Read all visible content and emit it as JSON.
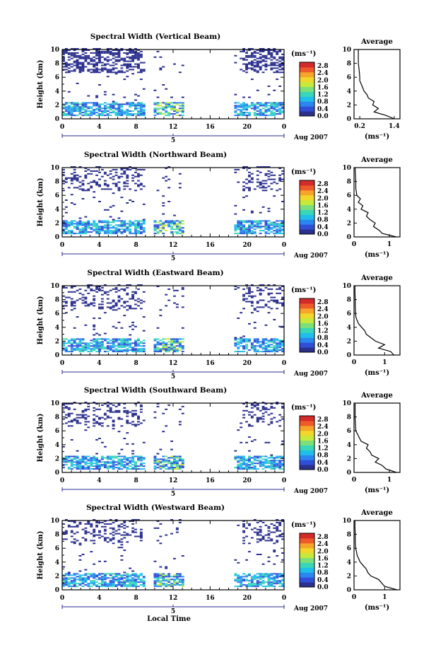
{
  "figure": {
    "date_label": "Aug 2007",
    "date_day": "5",
    "xaxis_label": "Local Time",
    "units_label": "(ms⁻¹)",
    "colormap": [
      "#2b2f8e",
      "#2f4fd6",
      "#2a86f0",
      "#1fbfea",
      "#3ad6b8",
      "#7be07a",
      "#c7e83c",
      "#f1d72a",
      "#f6a52a",
      "#ee5a2a",
      "#d42a2a"
    ]
  },
  "chart_data": [
    {
      "type": "heatmap",
      "title": "Spectral Width (Vertical Beam)",
      "xlabel": "",
      "ylabel": "Height (km)",
      "xlim": [
        0,
        24
      ],
      "ylim": [
        0,
        10
      ],
      "xticks": [
        "0",
        "4",
        "8",
        "12",
        "16",
        "20",
        "0"
      ],
      "yticks": [
        "0",
        "2",
        "4",
        "6",
        "8",
        "10"
      ],
      "colorbar": {
        "label": "(ms⁻¹)",
        "ticks": [
          "0.0",
          "0.4",
          "0.8",
          "1.2",
          "1.6",
          "2.0",
          "2.4",
          "2.8"
        ],
        "range": [
          0,
          3
        ]
      },
      "average_profile": {
        "title": "Average",
        "xlabel": "(ms⁻¹)",
        "xticks": [
          "0.2",
          "1.4"
        ],
        "xlim": [
          0,
          1.6
        ],
        "height": [
          0,
          0.5,
          1,
          1.5,
          2,
          2.5,
          3,
          3.5,
          4,
          4.5,
          5,
          5.5,
          6,
          7,
          8,
          9,
          10
        ],
        "value": [
          1.4,
          1.1,
          0.7,
          0.85,
          0.65,
          0.7,
          0.5,
          0.45,
          0.35,
          0.3,
          0.25,
          0.2,
          0.2,
          0.18,
          0.15,
          0.15,
          0.15
        ]
      }
    },
    {
      "type": "heatmap",
      "title": "Spectral Width (Northward Beam)",
      "xlabel": "",
      "ylabel": "Height (km)",
      "xlim": [
        0,
        24
      ],
      "ylim": [
        0,
        10
      ],
      "xticks": [
        "0",
        "4",
        "8",
        "12",
        "16",
        "20",
        "0"
      ],
      "yticks": [
        "0",
        "2",
        "4",
        "6",
        "8",
        "10"
      ],
      "colorbar": {
        "label": "(ms⁻¹)",
        "ticks": [
          "0.0",
          "0.4",
          "0.8",
          "1.2",
          "1.6",
          "2.0",
          "2.4",
          "2.8"
        ],
        "range": [
          0,
          3
        ]
      },
      "average_profile": {
        "title": "Average",
        "xlabel": "(ms⁻¹)",
        "xticks": [
          "0",
          "1"
        ],
        "xlim": [
          0,
          1.3
        ],
        "height": [
          0,
          0.5,
          1,
          1.5,
          2,
          2.5,
          3,
          3.5,
          4,
          4.5,
          5,
          5.5,
          6,
          7,
          8,
          9,
          10
        ],
        "value": [
          1.2,
          0.8,
          0.7,
          0.55,
          0.6,
          0.45,
          0.35,
          0.4,
          0.2,
          0.25,
          0.12,
          0.18,
          0.08,
          0.05,
          0.05,
          0.04,
          0.03
        ]
      }
    },
    {
      "type": "heatmap",
      "title": "Spectral Width (Eastward Beam)",
      "xlabel": "",
      "ylabel": "Height (km)",
      "xlim": [
        0,
        24
      ],
      "ylim": [
        0,
        10
      ],
      "xticks": [
        "0",
        "4",
        "8",
        "12",
        "16",
        "20",
        "0"
      ],
      "yticks": [
        "0",
        "2",
        "4",
        "6",
        "8",
        "10"
      ],
      "colorbar": {
        "label": "(ms⁻¹)",
        "ticks": [
          "0.0",
          "0.4",
          "0.8",
          "1.2",
          "1.6",
          "2.0",
          "2.4",
          "2.8"
        ],
        "range": [
          0,
          3
        ]
      },
      "average_profile": {
        "title": "Average",
        "xlabel": "(ms⁻¹)",
        "xticks": [
          "0",
          "1"
        ],
        "xlim": [
          0,
          1.5
        ],
        "height": [
          0,
          0.5,
          1,
          1.5,
          2,
          2.5,
          3,
          3.5,
          4,
          4.5,
          5,
          5.5,
          6,
          7,
          8,
          9,
          10
        ],
        "value": [
          1.3,
          1.2,
          0.8,
          1.0,
          0.7,
          0.55,
          0.4,
          0.35,
          0.25,
          0.15,
          0.1,
          0.06,
          0.05,
          0.04,
          0.04,
          0.03,
          0.03
        ]
      }
    },
    {
      "type": "heatmap",
      "title": "Spectral Width (Southward Beam)",
      "xlabel": "",
      "ylabel": "Height (km)",
      "xlim": [
        0,
        24
      ],
      "ylim": [
        0,
        10
      ],
      "xticks": [
        "0",
        "4",
        "8",
        "12",
        "16",
        "20",
        "0"
      ],
      "yticks": [
        "0",
        "2",
        "4",
        "6",
        "8",
        "10"
      ],
      "colorbar": {
        "label": "(ms⁻¹)",
        "ticks": [
          "0.0",
          "0.4",
          "0.8",
          "1.2",
          "1.6",
          "2.0",
          "2.4",
          "2.8"
        ],
        "range": [
          0,
          3
        ]
      },
      "average_profile": {
        "title": "Average",
        "xlabel": "(ms⁻¹)",
        "xticks": [
          "0",
          "1"
        ],
        "xlim": [
          0,
          1.3
        ],
        "height": [
          0,
          0.5,
          1,
          1.5,
          2,
          2.5,
          3,
          3.5,
          4,
          4.5,
          5,
          5.5,
          6,
          7,
          8,
          9,
          10
        ],
        "value": [
          1.2,
          0.9,
          0.8,
          0.6,
          0.7,
          0.5,
          0.45,
          0.35,
          0.4,
          0.2,
          0.15,
          0.1,
          0.05,
          0.04,
          0.03,
          0.03,
          0.03
        ]
      }
    },
    {
      "type": "heatmap",
      "title": "Spectral Width (Westward Beam)",
      "xlabel": "Local Time",
      "ylabel": "Height (km)",
      "xlim": [
        0,
        24
      ],
      "ylim": [
        0,
        10
      ],
      "xticks": [
        "0",
        "4",
        "8",
        "12",
        "16",
        "20",
        "0"
      ],
      "yticks": [
        "0",
        "2",
        "4",
        "6",
        "8",
        "10"
      ],
      "colorbar": {
        "label": "(ms⁻¹)",
        "ticks": [
          "0.0",
          "0.4",
          "0.8",
          "1.2",
          "1.6",
          "2.0",
          "2.4",
          "2.8"
        ],
        "range": [
          0,
          3
        ]
      },
      "average_profile": {
        "title": "Average",
        "xlabel": "(ms⁻¹)",
        "xticks": [
          "0",
          "1"
        ],
        "xlim": [
          0,
          1.5
        ],
        "height": [
          0,
          0.5,
          1,
          1.5,
          2,
          2.5,
          3,
          3.5,
          4,
          4.5,
          5,
          5.5,
          6,
          7,
          8,
          9,
          10
        ],
        "value": [
          1.4,
          1.0,
          0.9,
          0.8,
          0.55,
          0.45,
          0.4,
          0.3,
          0.2,
          0.15,
          0.1,
          0.08,
          0.05,
          0.04,
          0.04,
          0.03,
          0.03
        ]
      }
    }
  ]
}
